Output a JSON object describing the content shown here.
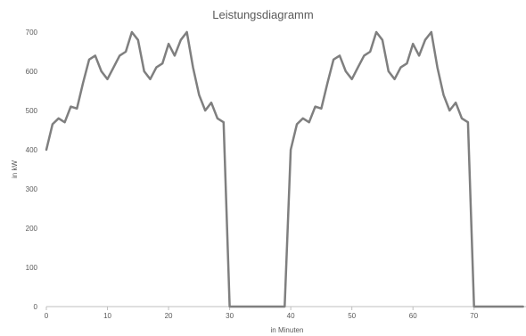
{
  "chart_data": {
    "type": "line",
    "title": "Leistungsdiagramm",
    "xlabel": "in Minuten",
    "ylabel": "in kW",
    "xlim": [
      0,
      78.5
    ],
    "ylim": [
      0,
      700
    ],
    "x_ticks": [
      0,
      10,
      20,
      30,
      40,
      50,
      60,
      70
    ],
    "y_ticks": [
      0,
      100,
      200,
      300,
      400,
      500,
      600,
      700
    ],
    "grid": false,
    "legend": "none",
    "colors": {
      "line": "#7f7f7f",
      "axis": "#bfbfbf",
      "text": "#595959"
    },
    "series": [
      {
        "x": [
          0,
          1,
          2,
          3,
          4,
          5,
          6,
          7,
          8,
          9,
          10,
          11,
          12,
          13,
          14,
          15,
          16,
          17,
          18,
          19,
          20,
          21,
          22,
          23,
          24,
          25,
          26,
          27,
          28,
          29,
          30,
          31,
          32,
          33,
          34,
          35,
          36,
          37,
          38,
          39,
          40,
          41,
          42,
          43,
          44,
          45,
          46,
          47,
          48,
          49,
          50,
          51,
          52,
          53,
          54,
          55,
          56,
          57,
          58,
          59,
          60,
          61,
          62,
          63,
          64,
          65,
          66,
          67,
          68,
          69,
          70,
          71,
          72,
          73,
          74,
          75,
          76,
          77,
          78
        ],
        "values": [
          400,
          465,
          480,
          470,
          510,
          505,
          570,
          630,
          640,
          600,
          580,
          610,
          640,
          650,
          700,
          680,
          600,
          580,
          610,
          620,
          670,
          640,
          680,
          700,
          610,
          540,
          500,
          520,
          480,
          470,
          0,
          0,
          0,
          0,
          0,
          0,
          0,
          0,
          0,
          0,
          400,
          465,
          480,
          470,
          510,
          505,
          570,
          630,
          640,
          600,
          580,
          610,
          640,
          650,
          700,
          680,
          600,
          580,
          610,
          620,
          670,
          640,
          680,
          700,
          610,
          540,
          500,
          520,
          480,
          470,
          0,
          0,
          0,
          0,
          0,
          0,
          0,
          0,
          0
        ]
      }
    ]
  }
}
